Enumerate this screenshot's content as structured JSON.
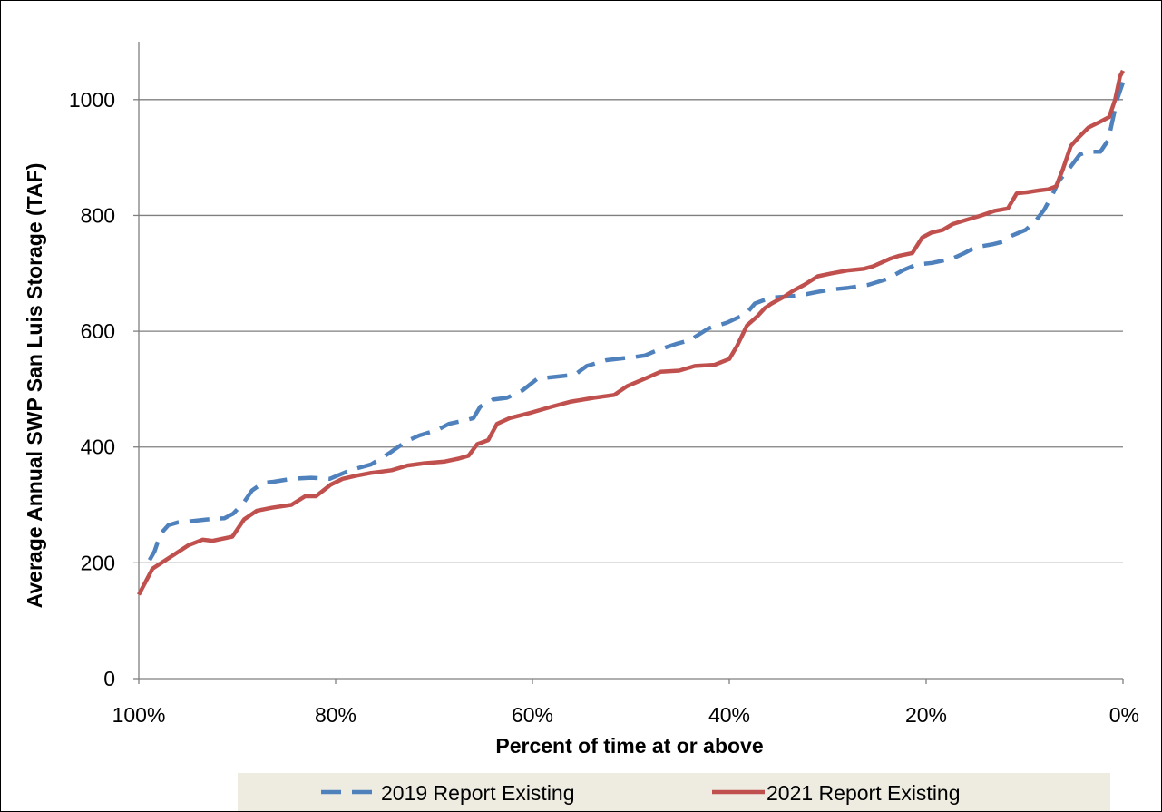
{
  "chart_data": {
    "type": "line",
    "title": "",
    "xlabel": "Percent of time at or above",
    "ylabel": "Average Annual SWP San Luis Storage (TAF)",
    "xlim": [
      100,
      0
    ],
    "ylim": [
      0,
      1100
    ],
    "x_ticks": [
      100,
      80,
      60,
      40,
      20,
      0
    ],
    "x_tick_labels": [
      "100%",
      "80%",
      "60%",
      "40%",
      "20%",
      "0%"
    ],
    "y_ticks": [
      0,
      200,
      400,
      600,
      800,
      1000
    ],
    "y_tick_labels": [
      "0",
      "200",
      "400",
      "600",
      "800",
      "1000"
    ],
    "grid": "horizontal",
    "legend_position": "bottom",
    "series": [
      {
        "name": "2019 Report Existing",
        "color": "#4F81BD",
        "style": "dashed",
        "x": [
          98.9,
          98.4,
          97.8,
          97.0,
          96.0,
          94.6,
          93.0,
          91.3,
          90.4,
          89.3,
          88.5,
          87.4,
          86.3,
          84.5,
          82.5,
          80.6,
          78.5,
          76.4,
          74.5,
          72.8,
          71.5,
          69.6,
          68.5,
          66.6,
          66.0,
          65.3,
          64.0,
          62.6,
          61.0,
          59.5,
          57.3,
          55.7,
          54.5,
          52.5,
          49.9,
          48.6,
          47.2,
          45.4,
          43.9,
          43.5,
          42.1,
          40.2,
          38.3,
          37.4,
          35.8,
          34.0,
          32.5,
          31.0,
          29.6,
          27.9,
          25.9,
          24.0,
          22.4,
          21.0,
          19.4,
          17.4,
          16.1,
          15.0,
          13.3,
          12.1,
          11.3,
          9.9,
          8.9,
          8.0,
          7.2,
          6.5,
          5.5,
          4.4,
          3.6,
          2.3,
          1.5,
          0.6,
          0.0
        ],
        "y": [
          205,
          220,
          250,
          265,
          270,
          272,
          275,
          277,
          285,
          305,
          325,
          338,
          340,
          345,
          347,
          345,
          360,
          370,
          390,
          410,
          420,
          430,
          440,
          447,
          450,
          470,
          482,
          485,
          498,
          518,
          522,
          525,
          540,
          550,
          555,
          558,
          568,
          578,
          585,
          590,
          605,
          615,
          630,
          648,
          658,
          660,
          663,
          668,
          672,
          675,
          680,
          690,
          705,
          715,
          718,
          725,
          735,
          745,
          750,
          755,
          765,
          775,
          790,
          810,
          835,
          860,
          880,
          905,
          910,
          910,
          930,
          1000,
          1030
        ]
      },
      {
        "name": "2021 Report Existing",
        "color": "#C0504D",
        "style": "solid",
        "x": [
          100.0,
          98.6,
          96.8,
          95.0,
          93.5,
          92.5,
          90.5,
          89.3,
          88.0,
          86.5,
          84.5,
          83.1,
          82.0,
          80.5,
          79.3,
          78.0,
          76.5,
          75.6,
          74.3,
          72.7,
          71.0,
          68.9,
          67.5,
          66.5,
          65.6,
          64.5,
          63.6,
          62.3,
          60.0,
          58.0,
          56.2,
          53.8,
          51.7,
          50.4,
          48.6,
          47.0,
          45.1,
          43.5,
          41.5,
          40.0,
          39.2,
          38.2,
          37.2,
          36.4,
          35.7,
          34.4,
          33.5,
          32.4,
          31.0,
          29.6,
          28.0,
          26.3,
          25.4,
          23.7,
          22.8,
          21.4,
          20.4,
          19.5,
          18.3,
          17.3,
          16.0,
          14.4,
          13.0,
          11.7,
          10.8,
          9.7,
          8.6,
          7.6,
          6.8,
          6.1,
          5.3,
          4.5,
          3.5,
          2.3,
          1.4,
          0.8,
          0.3,
          0.0
        ],
        "y": [
          145,
          190,
          210,
          230,
          240,
          238,
          245,
          275,
          290,
          295,
          300,
          315,
          315,
          335,
          345,
          350,
          355,
          357,
          360,
          368,
          372,
          375,
          380,
          385,
          405,
          412,
          440,
          450,
          460,
          470,
          478,
          485,
          490,
          505,
          518,
          530,
          532,
          540,
          542,
          552,
          575,
          610,
          625,
          640,
          648,
          660,
          670,
          680,
          695,
          700,
          705,
          708,
          712,
          725,
          730,
          735,
          762,
          770,
          775,
          785,
          792,
          800,
          808,
          812,
          838,
          840,
          843,
          845,
          850,
          880,
          920,
          935,
          952,
          962,
          970,
          1000,
          1040,
          1050
        ]
      }
    ]
  }
}
